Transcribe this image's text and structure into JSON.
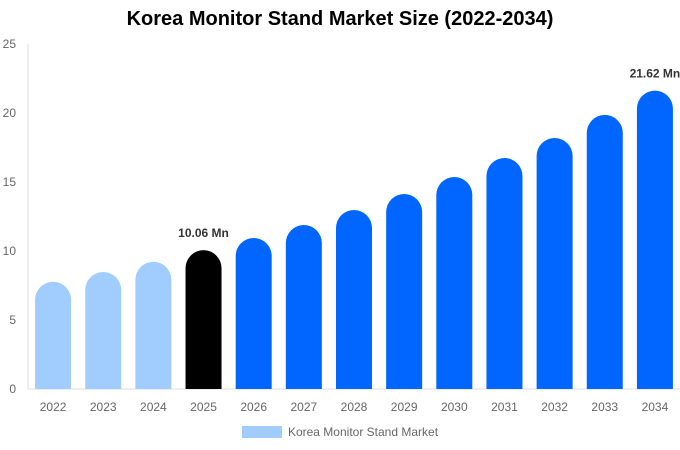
{
  "chart_data": {
    "type": "bar",
    "title": "Korea Monitor Stand Market Size (2022-2034)",
    "categories": [
      "2022",
      "2023",
      "2024",
      "2025",
      "2026",
      "2027",
      "2028",
      "2029",
      "2030",
      "2031",
      "2032",
      "2033",
      "2034"
    ],
    "series": [
      {
        "name": "Korea Monitor Stand Market",
        "values": [
          7.77,
          8.48,
          9.22,
          10.06,
          10.94,
          11.88,
          12.97,
          14.13,
          15.36,
          16.74,
          18.19,
          19.86,
          21.62
        ]
      }
    ],
    "ylim": [
      0,
      25
    ],
    "yticks": [
      0,
      5,
      10,
      15,
      20,
      25
    ],
    "data_labels": [
      {
        "category": "2025",
        "text": "10.06 Mn"
      },
      {
        "category": "2034",
        "text": "21.62 Mn"
      }
    ],
    "colors": {
      "historical": "#a0cdfd",
      "base_year": "#000000",
      "forecast": "#0066ff"
    },
    "bar_color_groups": [
      "historical",
      "historical",
      "historical",
      "base_year",
      "forecast",
      "forecast",
      "forecast",
      "forecast",
      "forecast",
      "forecast",
      "forecast",
      "forecast",
      "forecast"
    ],
    "grid": false,
    "legend_position": "bottom"
  }
}
